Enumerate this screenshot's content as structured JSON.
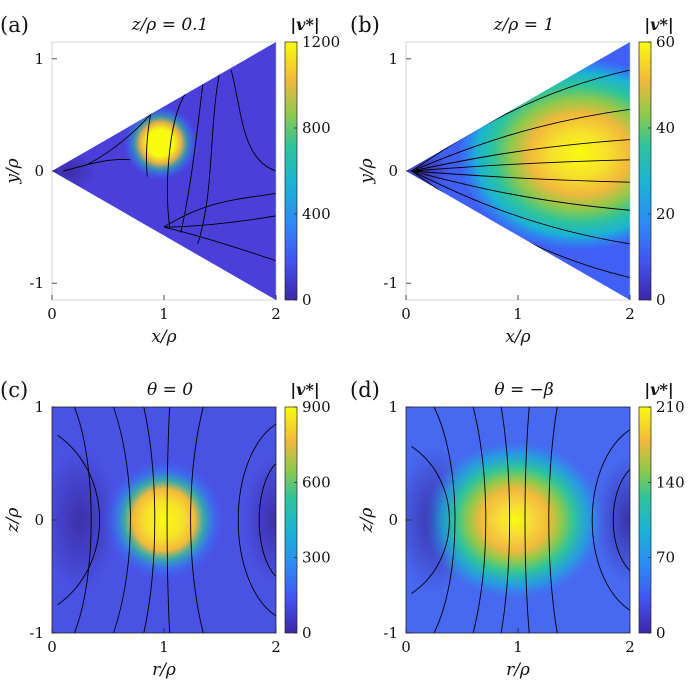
{
  "chart_data": [
    {
      "panel": "(a)",
      "type": "heatmap",
      "title": "z/ρ = 0.1",
      "xlabel": "x/ρ",
      "ylabel": "y/ρ",
      "xlim": [
        0,
        2
      ],
      "ylim": [
        -1.15,
        1.15
      ],
      "xticks": [
        "0",
        "1",
        "2"
      ],
      "yticks": [
        "-1",
        "0",
        "1"
      ],
      "domain": "wedge",
      "colorbar_label": "|v*|",
      "clim": [
        0,
        1200
      ],
      "colorbar_ticks": [
        "0",
        "400",
        "800",
        "1200"
      ],
      "colormap": "parula",
      "hotspot": {
        "x": 0.97,
        "y": 0.25,
        "peak": 1200
      },
      "background_value": 90
    },
    {
      "panel": "(b)",
      "type": "heatmap",
      "title": "z/ρ = 1",
      "xlabel": "x/ρ",
      "ylabel": "y/ρ",
      "xlim": [
        0,
        2
      ],
      "ylim": [
        -1.15,
        1.15
      ],
      "xticks": [
        "0",
        "1",
        "2"
      ],
      "yticks": [
        "-1",
        "0",
        "1"
      ],
      "domain": "wedge",
      "colorbar_label": "|v*|",
      "clim": [
        0,
        60
      ],
      "colorbar_ticks": [
        "0",
        "20",
        "40",
        "60"
      ],
      "colormap": "parula",
      "hotspot": {
        "x": 1.55,
        "y": 0.15,
        "peak": 58
      },
      "background_value": 5
    },
    {
      "panel": "(c)",
      "type": "heatmap",
      "title": "θ = 0",
      "xlabel": "r/ρ",
      "ylabel": "z/ρ",
      "xlim": [
        0,
        2
      ],
      "ylim": [
        -1,
        1
      ],
      "xticks": [
        "0",
        "1",
        "2"
      ],
      "yticks": [
        "-1",
        "0",
        "1"
      ],
      "domain": "rect",
      "colorbar_label": "|v*|",
      "clim": [
        0,
        900
      ],
      "colorbar_ticks": [
        "0",
        "300",
        "600",
        "900"
      ],
      "colormap": "parula",
      "hotspot": {
        "x": 1.0,
        "y": 0.0,
        "peak": 900
      },
      "background_value": 120
    },
    {
      "panel": "(d)",
      "type": "heatmap",
      "title": "θ = −β",
      "xlabel": "r/ρ",
      "ylabel": "z/ρ",
      "xlim": [
        0,
        2
      ],
      "ylim": [
        -1,
        1
      ],
      "xticks": [
        "0",
        "1",
        "2"
      ],
      "yticks": [
        "-1",
        "0",
        "1"
      ],
      "domain": "rect",
      "colorbar_label": "|v*|",
      "clim": [
        0,
        210
      ],
      "colorbar_ticks": [
        "0",
        "70",
        "140",
        "210"
      ],
      "colormap": "parula",
      "hotspot": {
        "x": 0.97,
        "y": 0.0,
        "peak": 210
      },
      "background_value": 30
    }
  ]
}
